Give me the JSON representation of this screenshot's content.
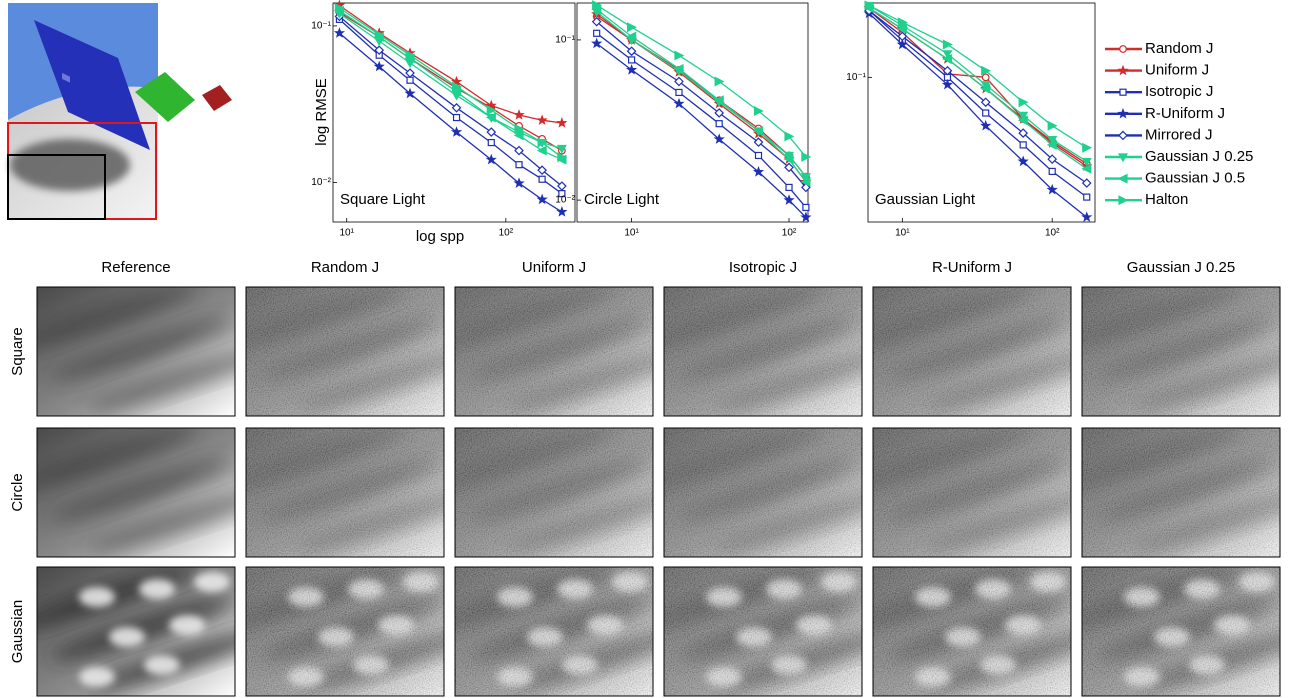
{
  "chart_data": [
    {
      "type": "line",
      "title": "Square Light",
      "x_label": "log spp",
      "y_label": "log RMSE",
      "xscale": "log",
      "yscale": "log",
      "legend": "right",
      "xlim": [
        8.2,
        272
      ],
      "ylim": [
        0.0056,
        0.14
      ],
      "xticks": [
        {
          "value": 10,
          "label": "10¹"
        },
        {
          "value": 100,
          "label": "10²"
        }
      ],
      "yticks": [
        {
          "value": 0.1,
          "label": "10⁻¹"
        },
        {
          "value": 0.01,
          "label": "10⁻²"
        }
      ],
      "x": [
        9,
        16,
        25,
        49,
        81,
        121,
        169,
        225
      ],
      "series": [
        {
          "name": "Random J",
          "color": "#d42a2a",
          "marker": "circle",
          "values": [
            0.122,
            0.085,
            0.062,
            0.04,
            0.03,
            0.023,
            0.019,
            0.016
          ]
        },
        {
          "name": "Uniform J",
          "color": "#d42a2a",
          "marker": "star",
          "values": [
            0.135,
            0.09,
            0.067,
            0.044,
            0.031,
            0.027,
            0.025,
            0.024
          ]
        },
        {
          "name": "Isotropic J",
          "color": "#1f2fb4",
          "marker": "square",
          "values": [
            0.11,
            0.065,
            0.045,
            0.026,
            0.018,
            0.013,
            0.0105,
            0.0085
          ]
        },
        {
          "name": "R-Uniform J",
          "color": "#1f2fb4",
          "marker": "star",
          "values": [
            0.09,
            0.055,
            0.037,
            0.021,
            0.014,
            0.0099,
            0.0078,
            0.0065
          ]
        },
        {
          "name": "Mirrored J",
          "color": "#1f2fb4",
          "marker": "diamond",
          "values": [
            0.115,
            0.07,
            0.05,
            0.03,
            0.021,
            0.016,
            0.012,
            0.0095
          ]
        },
        {
          "name": "Gaussian J 0.25",
          "color": "#1fd18f",
          "marker": "triangle-down",
          "values": [
            0.12,
            0.08,
            0.058,
            0.036,
            0.026,
            0.021,
            0.018,
            0.0165
          ]
        },
        {
          "name": "Gaussian J 0.5",
          "color": "#1fd18f",
          "marker": "triangle-left",
          "values": [
            0.125,
            0.085,
            0.062,
            0.038,
            0.026,
            0.02,
            0.016,
            0.014
          ]
        },
        {
          "name": "Halton",
          "color": "#1fd18f",
          "marker": "triangle-right",
          "values": [
            0.13,
            0.088,
            0.065,
            0.041,
            0.029,
            0.022,
            0.018,
            0.0145
          ]
        }
      ]
    },
    {
      "type": "line",
      "title": "Circle Light",
      "xscale": "log",
      "yscale": "log",
      "xlim": [
        4.5,
        132
      ],
      "ylim": [
        0.0073,
        0.17
      ],
      "xticks": [
        {
          "value": 10,
          "label": "10¹"
        },
        {
          "value": 100,
          "label": "10²"
        }
      ],
      "yticks": [
        {
          "value": 0.1,
          "label": "10⁻¹"
        },
        {
          "value": 0.01,
          "label": "10⁻²"
        }
      ],
      "x": [
        6,
        10,
        20,
        36,
        64,
        100,
        128
      ],
      "series": [
        {
          "color": "#d42a2a",
          "marker": "circle",
          "values": [
            0.14,
            0.1,
            0.065,
            0.042,
            0.028,
            0.019,
            0.014
          ]
        },
        {
          "color": "#d42a2a",
          "marker": "star",
          "values": [
            0.145,
            0.1,
            0.063,
            0.04,
            0.026,
            0.018,
            0.013
          ]
        },
        {
          "color": "#1f2fb4",
          "marker": "square",
          "values": [
            0.11,
            0.075,
            0.047,
            0.03,
            0.019,
            0.012,
            0.009
          ]
        },
        {
          "color": "#1f2fb4",
          "marker": "star",
          "values": [
            0.095,
            0.065,
            0.04,
            0.024,
            0.015,
            0.01,
            0.0078
          ]
        },
        {
          "color": "#1f2fb4",
          "marker": "diamond",
          "values": [
            0.13,
            0.085,
            0.055,
            0.035,
            0.023,
            0.016,
            0.012
          ]
        },
        {
          "color": "#1fd18f",
          "marker": "triangle-down",
          "values": [
            0.15,
            0.1,
            0.064,
            0.041,
            0.027,
            0.019,
            0.014
          ]
        },
        {
          "color": "#1fd18f",
          "marker": "triangle-left",
          "values": [
            0.155,
            0.105,
            0.066,
            0.042,
            0.027,
            0.018,
            0.013
          ]
        },
        {
          "color": "#1fd18f",
          "marker": "triangle-right",
          "values": [
            0.165,
            0.12,
            0.08,
            0.055,
            0.036,
            0.025,
            0.0186
          ]
        }
      ]
    },
    {
      "type": "line",
      "title": "Gaussian Light",
      "xscale": "log",
      "yscale": "log",
      "xlim": [
        5.9,
        193
      ],
      "ylim": [
        0.0126,
        0.29
      ],
      "xticks": [
        {
          "value": 10,
          "label": "10¹"
        },
        {
          "value": 100,
          "label": "10²"
        }
      ],
      "yticks": [
        {
          "value": 0.1,
          "label": "10⁻¹"
        }
      ],
      "x": [
        6,
        10,
        20,
        36,
        64,
        100,
        170
      ],
      "series": [
        {
          "color": "#d42a2a",
          "marker": "circle",
          "values": [
            0.27,
            0.19,
            0.105,
            0.1,
            0.055,
            0.04,
            0.029
          ]
        },
        {
          "color": "#d42a2a",
          "marker": "star",
          "values": [
            0.27,
            0.2,
            0.13,
            0.085,
            0.055,
            0.039,
            0.028
          ]
        },
        {
          "color": "#1f2fb4",
          "marker": "square",
          "values": [
            0.26,
            0.17,
            0.1,
            0.06,
            0.038,
            0.026,
            0.018
          ]
        },
        {
          "color": "#1f2fb4",
          "marker": "star",
          "values": [
            0.25,
            0.16,
            0.09,
            0.05,
            0.03,
            0.02,
            0.0135
          ]
        },
        {
          "color": "#1f2fb4",
          "marker": "diamond",
          "values": [
            0.26,
            0.18,
            0.11,
            0.07,
            0.045,
            0.031,
            0.022
          ]
        },
        {
          "color": "#1fd18f",
          "marker": "triangle-down",
          "values": [
            0.28,
            0.21,
            0.14,
            0.09,
            0.058,
            0.041,
            0.03
          ]
        },
        {
          "color": "#1fd18f",
          "marker": "triangle-left",
          "values": [
            0.27,
            0.2,
            0.13,
            0.085,
            0.054,
            0.038,
            0.027
          ]
        },
        {
          "color": "#1fd18f",
          "marker": "triangle-right",
          "values": [
            0.28,
            0.22,
            0.16,
            0.11,
            0.07,
            0.05,
            0.0365
          ]
        }
      ]
    }
  ],
  "comparison": {
    "columns": [
      "Reference",
      "Random J",
      "Uniform J",
      "Isotropic J",
      "R-Uniform J",
      "Gaussian J 0.25"
    ],
    "rows": [
      "Square",
      "Circle",
      "Gaussian"
    ]
  }
}
